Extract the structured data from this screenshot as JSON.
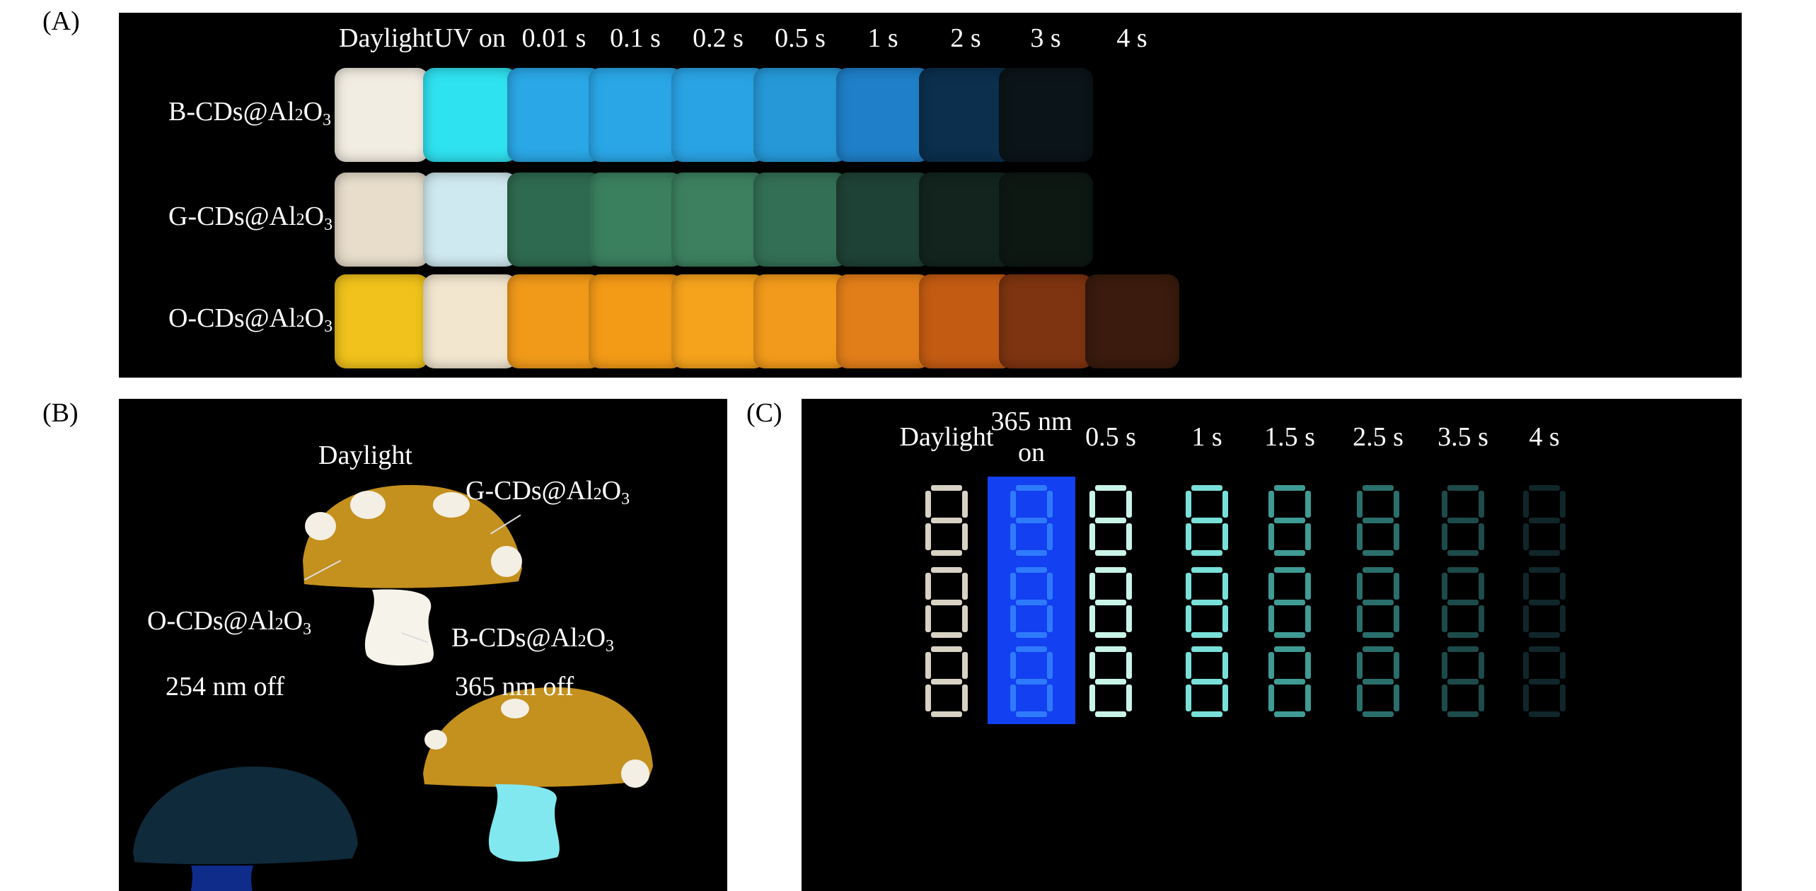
{
  "panels": {
    "a": {
      "label": "(A)",
      "columns": [
        "Daylight",
        "UV on",
        "0.01 s",
        "0.1 s",
        "0.2 s",
        "0.5 s",
        "1 s",
        "2 s",
        "3 s",
        "4 s"
      ],
      "rows": [
        {
          "prefix": "B-CDs@Al",
          "sub1": "2",
          "mid": "O",
          "sub2": "3",
          "colors": [
            "#f2ede2",
            "#2fe2f0",
            "#2aa7e6",
            "#2aa6e6",
            "#2aa3e4",
            "#2698d8",
            "#1f7fc8",
            "#0b2f4d",
            "#0b1418",
            null
          ]
        },
        {
          "prefix": "G-CDs@Al",
          "sub1": "2",
          "mid": "O",
          "sub2": "3",
          "colors": [
            "#e8ddcb",
            "#cfe9f0",
            "#2e6a4f",
            "#3a7f5e",
            "#3c805f",
            "#336f55",
            "#1f4236",
            "#13241e",
            "#0e1813",
            null
          ]
        },
        {
          "prefix": "O-CDs@Al",
          "sub1": "2",
          "mid": "O",
          "sub2": "3",
          "colors": [
            "#f0c21b",
            "#f2e6cf",
            "#f19a1a",
            "#f39a17",
            "#f5a21c",
            "#f29a1b",
            "#e27e1a",
            "#c35b12",
            "#7e3410",
            "#3a1b0d"
          ]
        }
      ]
    },
    "b": {
      "label": "(B)",
      "daylight_title": "Daylight",
      "off_254": "254 nm off",
      "off_365": "365 nm off",
      "callouts": {
        "g": {
          "prefix": "G-CDs@Al",
          "sub1": "2",
          "mid": "O",
          "sub2": "3"
        },
        "o": {
          "prefix": "O-CDs@Al",
          "sub1": "2",
          "mid": "O",
          "sub2": "3"
        },
        "b": {
          "prefix": "B-CDs@Al",
          "sub1": "2",
          "mid": "O",
          "sub2": "3"
        }
      },
      "colors": {
        "cap": "#c4901e",
        "spot": "#f4efe4",
        "stem": "#f6f3ea",
        "glow_cap_254": "#0f2a3a",
        "glow_stem_254": "#0f2c8a",
        "glow_stem_365": "#80e8ee"
      }
    },
    "c": {
      "label": "(C)",
      "columns": [
        "Daylight",
        "365 nm on",
        "0.5 s",
        "1 s",
        "1.5 s",
        "2.5 s",
        "3.5 s",
        "4 s"
      ],
      "col365_line1": "365 nm",
      "col365_line2": "on",
      "digit": "8",
      "colors": {
        "daylight": "#d8d2c4",
        "uv_bg": "#1340f0",
        "uv_inner": "#2f7bff",
        "glow": [
          "#c8f4e8",
          "#78e0d8",
          "#3f9c95",
          "#2a6f6c",
          "#1d4a4a",
          "#10262a"
        ]
      }
    }
  }
}
